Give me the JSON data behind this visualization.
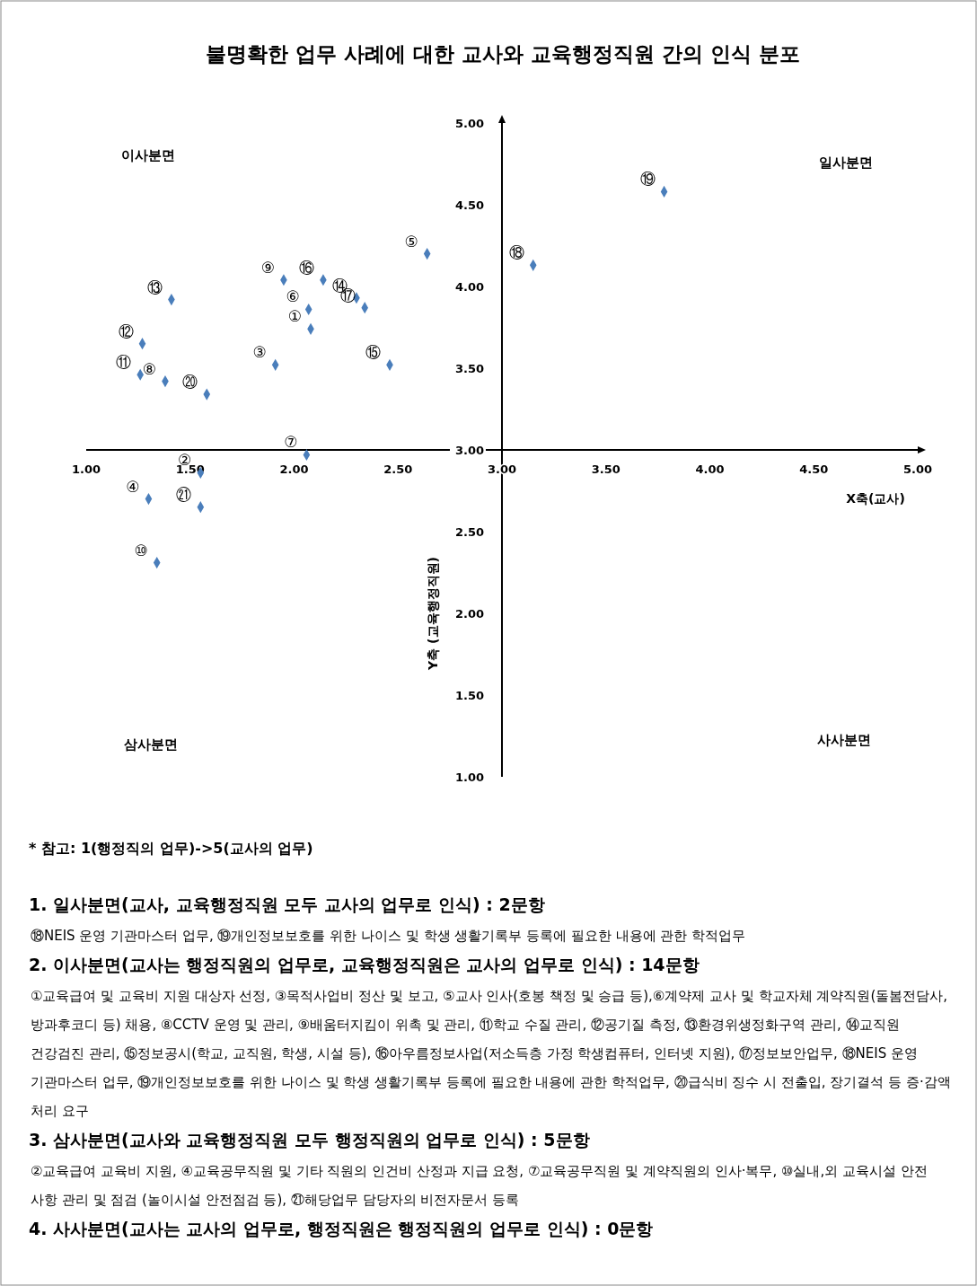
{
  "chart_data": {
    "type": "scatter",
    "title": "불명확한 업무 사례에 대한 교사와 교육행정직원 간의 인식 분포",
    "xlabel": "X축(교사)",
    "ylabel": "Y축 (교육행정직원)",
    "color": "#4a7ebb",
    "marker": "diamond",
    "grid": false,
    "x": [
      2.08,
      1.55,
      1.91,
      1.3,
      2.64,
      2.07,
      2.06,
      1.38,
      1.95,
      1.34,
      1.26,
      1.27,
      1.41,
      2.3,
      2.46,
      2.14,
      2.34,
      3.15,
      3.78,
      1.58,
      1.55
    ],
    "values": [
      3.74,
      2.86,
      3.52,
      2.7,
      4.2,
      3.86,
      2.97,
      3.42,
      4.04,
      2.31,
      3.46,
      3.65,
      3.92,
      3.93,
      3.52,
      4.04,
      3.87,
      4.13,
      4.58,
      3.34,
      2.65
    ],
    "xlim": [
      1,
      5
    ],
    "ylim": [
      1,
      5
    ],
    "xticks": [
      {
        "value": 1,
        "label": "1.00"
      },
      {
        "value": 1.5,
        "label": "1.50"
      },
      {
        "value": 2,
        "label": "2.00"
      },
      {
        "value": 2.5,
        "label": "2.50"
      },
      {
        "value": 3,
        "label": "3.00"
      },
      {
        "value": 3.5,
        "label": "3.50"
      },
      {
        "value": 4,
        "label": "4.00"
      },
      {
        "value": 4.5,
        "label": "4.50"
      },
      {
        "value": 5,
        "label": "5.00"
      }
    ],
    "yticks": [
      {
        "value": 1,
        "label": "1.00"
      },
      {
        "value": 1.5,
        "label": "1.50"
      },
      {
        "value": 2,
        "label": "2.00"
      },
      {
        "value": 2.5,
        "label": "2.50"
      },
      {
        "value": 3,
        "label": "3.00"
      },
      {
        "value": 3.5,
        "label": "3.50"
      },
      {
        "value": 4,
        "label": "4.00"
      },
      {
        "value": 4.5,
        "label": "4.50"
      },
      {
        "value": 5,
        "label": "5.00"
      }
    ],
    "annotations": [
      {
        "text": "①",
        "x": 2.08,
        "y": 3.74
      },
      {
        "text": "②",
        "x": 1.55,
        "y": 2.86
      },
      {
        "text": "③",
        "x": 1.91,
        "y": 3.52
      },
      {
        "text": "④",
        "x": 1.3,
        "y": 2.7
      },
      {
        "text": "⑤",
        "x": 2.64,
        "y": 4.2
      },
      {
        "text": "⑥",
        "x": 2.07,
        "y": 3.86
      },
      {
        "text": "⑦",
        "x": 2.06,
        "y": 2.97
      },
      {
        "text": "⑧",
        "x": 1.38,
        "y": 3.42
      },
      {
        "text": "⑨",
        "x": 1.95,
        "y": 4.04
      },
      {
        "text": "⑩",
        "x": 1.34,
        "y": 2.31
      },
      {
        "text": "⑪",
        "x": 1.26,
        "y": 3.46
      },
      {
        "text": "⑫",
        "x": 1.27,
        "y": 3.65
      },
      {
        "text": "⑬",
        "x": 1.41,
        "y": 3.92
      },
      {
        "text": "⑭",
        "x": 2.3,
        "y": 3.93
      },
      {
        "text": "⑮",
        "x": 2.46,
        "y": 3.52
      },
      {
        "text": "⑯",
        "x": 2.14,
        "y": 4.04
      },
      {
        "text": "⑰",
        "x": 2.34,
        "y": 3.87
      },
      {
        "text": "⑱",
        "x": 3.15,
        "y": 4.13
      },
      {
        "text": "⑲",
        "x": 3.78,
        "y": 4.58
      },
      {
        "text": "⑳",
        "x": 1.58,
        "y": 3.34
      },
      {
        "text": "㉑",
        "x": 1.55,
        "y": 2.65
      },
      "이사분면",
      "일사분면",
      "삼사분면",
      "사사분면",
      "* 참고: 1(행정직의 업무)->5(교사의 업무)",
      "1. 일사분면(교사, 교육행정직원 모두 교사의 업무로 인식) : 2문항",
      "⑱NEIS 운영 기관마스터 업무, ⑲개인정보보호를 위한 나이스 및 학생 생활기록부 등록에 필요한 내용에 관한 학적업무",
      "2. 이사분면(교사는 행정직원의 업무로, 교육행정직원은 교사의 업무로 인식) : 14문항",
      "①교육급여 및 교육비 지원 대상자 선정, ③목적사업비 정산 및 보고, ⑤교사 인사(호봉 책정 및 승급 등),⑥계약제 교사 및 학교자체 계약직원(돌봄전담사, 방과후코디 등) 채용, ⑧CCTV 운영 및 관리, ⑨배움터지킴이 위촉 및 관리, ⑪학교 수질 관리, ⑫공기질 측정, ⑬환경위생정화구역 관리, ⑭교직원 건강검진 관리, ⑮정보공시(학교, 교직원, 학생, 시설 등), ⑯아우름정보사업(저소득층 가정 학생컴퓨터, 인터넷 지원), ⑰정보보안업무, ⑱NEIS 운영 기관마스터 업무, ⑲개인정보보호를 위한 나이스 및 학생 생활기록부 등록에 필요한 내용에 관한 학적업무, ⑳급식비 징수 시 전출입, 장기결석 등 증·감액 처리 요구",
      "3. 삼사분면(교사와 교육행정직원 모두 행정직원의 업무로 인식) : 5문항",
      "②교육급여 교육비 지원, ④교육공무직원 및 기타 직원의 인건비 산정과 지급 요청, ⑦교육공무직원 및 계약직원의 인사·복무, ⑩실내,외 교육시설 안전 사항 관리 및 점검 (놀이시설 안전점검 등), ㉑해당업무 담당자의 비전자문서 등록",
      "4. 사사분면(교사는 교사의 업무로, 행정직원은 행정직원의 업무로 인식) : 0문항"
    ]
  }
}
